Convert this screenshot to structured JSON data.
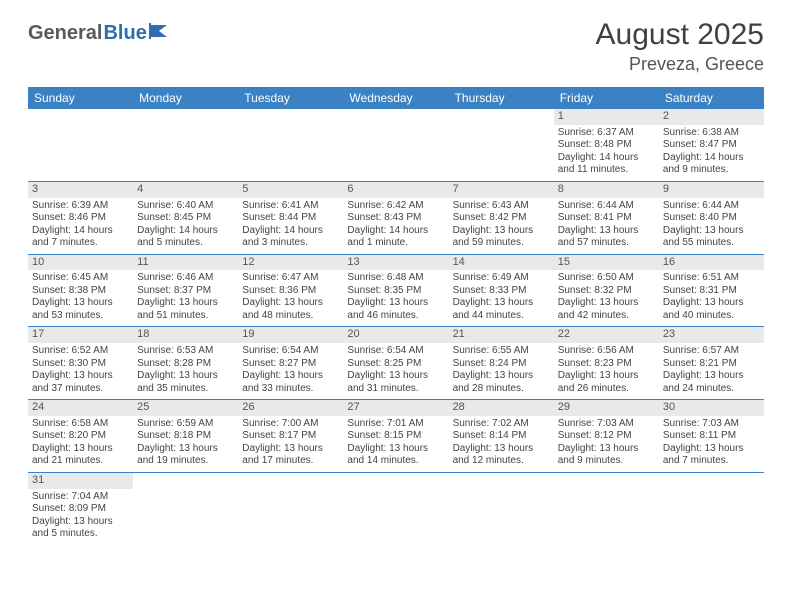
{
  "logo": {
    "part1": "General",
    "part2": "Blue"
  },
  "colors": {
    "header_bg": "#3a82c4",
    "header_text": "#ffffff",
    "daynum_bg": "#e9e9e9",
    "border": "#3a82c4",
    "logo_gray": "#5a5a5a",
    "logo_blue": "#2f6fb0",
    "text": "#444444",
    "title": "#404040"
  },
  "title": "August 2025",
  "location": "Preveza, Greece",
  "day_headers": [
    "Sunday",
    "Monday",
    "Tuesday",
    "Wednesday",
    "Thursday",
    "Friday",
    "Saturday"
  ],
  "weeks": [
    [
      null,
      null,
      null,
      null,
      null,
      {
        "n": "1",
        "sr": "Sunrise: 6:37 AM",
        "ss": "Sunset: 8:48 PM",
        "d1": "Daylight: 14 hours",
        "d2": "and 11 minutes."
      },
      {
        "n": "2",
        "sr": "Sunrise: 6:38 AM",
        "ss": "Sunset: 8:47 PM",
        "d1": "Daylight: 14 hours",
        "d2": "and 9 minutes."
      }
    ],
    [
      {
        "n": "3",
        "sr": "Sunrise: 6:39 AM",
        "ss": "Sunset: 8:46 PM",
        "d1": "Daylight: 14 hours",
        "d2": "and 7 minutes."
      },
      {
        "n": "4",
        "sr": "Sunrise: 6:40 AM",
        "ss": "Sunset: 8:45 PM",
        "d1": "Daylight: 14 hours",
        "d2": "and 5 minutes."
      },
      {
        "n": "5",
        "sr": "Sunrise: 6:41 AM",
        "ss": "Sunset: 8:44 PM",
        "d1": "Daylight: 14 hours",
        "d2": "and 3 minutes."
      },
      {
        "n": "6",
        "sr": "Sunrise: 6:42 AM",
        "ss": "Sunset: 8:43 PM",
        "d1": "Daylight: 14 hours",
        "d2": "and 1 minute."
      },
      {
        "n": "7",
        "sr": "Sunrise: 6:43 AM",
        "ss": "Sunset: 8:42 PM",
        "d1": "Daylight: 13 hours",
        "d2": "and 59 minutes."
      },
      {
        "n": "8",
        "sr": "Sunrise: 6:44 AM",
        "ss": "Sunset: 8:41 PM",
        "d1": "Daylight: 13 hours",
        "d2": "and 57 minutes."
      },
      {
        "n": "9",
        "sr": "Sunrise: 6:44 AM",
        "ss": "Sunset: 8:40 PM",
        "d1": "Daylight: 13 hours",
        "d2": "and 55 minutes."
      }
    ],
    [
      {
        "n": "10",
        "sr": "Sunrise: 6:45 AM",
        "ss": "Sunset: 8:38 PM",
        "d1": "Daylight: 13 hours",
        "d2": "and 53 minutes."
      },
      {
        "n": "11",
        "sr": "Sunrise: 6:46 AM",
        "ss": "Sunset: 8:37 PM",
        "d1": "Daylight: 13 hours",
        "d2": "and 51 minutes."
      },
      {
        "n": "12",
        "sr": "Sunrise: 6:47 AM",
        "ss": "Sunset: 8:36 PM",
        "d1": "Daylight: 13 hours",
        "d2": "and 48 minutes."
      },
      {
        "n": "13",
        "sr": "Sunrise: 6:48 AM",
        "ss": "Sunset: 8:35 PM",
        "d1": "Daylight: 13 hours",
        "d2": "and 46 minutes."
      },
      {
        "n": "14",
        "sr": "Sunrise: 6:49 AM",
        "ss": "Sunset: 8:33 PM",
        "d1": "Daylight: 13 hours",
        "d2": "and 44 minutes."
      },
      {
        "n": "15",
        "sr": "Sunrise: 6:50 AM",
        "ss": "Sunset: 8:32 PM",
        "d1": "Daylight: 13 hours",
        "d2": "and 42 minutes."
      },
      {
        "n": "16",
        "sr": "Sunrise: 6:51 AM",
        "ss": "Sunset: 8:31 PM",
        "d1": "Daylight: 13 hours",
        "d2": "and 40 minutes."
      }
    ],
    [
      {
        "n": "17",
        "sr": "Sunrise: 6:52 AM",
        "ss": "Sunset: 8:30 PM",
        "d1": "Daylight: 13 hours",
        "d2": "and 37 minutes."
      },
      {
        "n": "18",
        "sr": "Sunrise: 6:53 AM",
        "ss": "Sunset: 8:28 PM",
        "d1": "Daylight: 13 hours",
        "d2": "and 35 minutes."
      },
      {
        "n": "19",
        "sr": "Sunrise: 6:54 AM",
        "ss": "Sunset: 8:27 PM",
        "d1": "Daylight: 13 hours",
        "d2": "and 33 minutes."
      },
      {
        "n": "20",
        "sr": "Sunrise: 6:54 AM",
        "ss": "Sunset: 8:25 PM",
        "d1": "Daylight: 13 hours",
        "d2": "and 31 minutes."
      },
      {
        "n": "21",
        "sr": "Sunrise: 6:55 AM",
        "ss": "Sunset: 8:24 PM",
        "d1": "Daylight: 13 hours",
        "d2": "and 28 minutes."
      },
      {
        "n": "22",
        "sr": "Sunrise: 6:56 AM",
        "ss": "Sunset: 8:23 PM",
        "d1": "Daylight: 13 hours",
        "d2": "and 26 minutes."
      },
      {
        "n": "23",
        "sr": "Sunrise: 6:57 AM",
        "ss": "Sunset: 8:21 PM",
        "d1": "Daylight: 13 hours",
        "d2": "and 24 minutes."
      }
    ],
    [
      {
        "n": "24",
        "sr": "Sunrise: 6:58 AM",
        "ss": "Sunset: 8:20 PM",
        "d1": "Daylight: 13 hours",
        "d2": "and 21 minutes."
      },
      {
        "n": "25",
        "sr": "Sunrise: 6:59 AM",
        "ss": "Sunset: 8:18 PM",
        "d1": "Daylight: 13 hours",
        "d2": "and 19 minutes."
      },
      {
        "n": "26",
        "sr": "Sunrise: 7:00 AM",
        "ss": "Sunset: 8:17 PM",
        "d1": "Daylight: 13 hours",
        "d2": "and 17 minutes."
      },
      {
        "n": "27",
        "sr": "Sunrise: 7:01 AM",
        "ss": "Sunset: 8:15 PM",
        "d1": "Daylight: 13 hours",
        "d2": "and 14 minutes."
      },
      {
        "n": "28",
        "sr": "Sunrise: 7:02 AM",
        "ss": "Sunset: 8:14 PM",
        "d1": "Daylight: 13 hours",
        "d2": "and 12 minutes."
      },
      {
        "n": "29",
        "sr": "Sunrise: 7:03 AM",
        "ss": "Sunset: 8:12 PM",
        "d1": "Daylight: 13 hours",
        "d2": "and 9 minutes."
      },
      {
        "n": "30",
        "sr": "Sunrise: 7:03 AM",
        "ss": "Sunset: 8:11 PM",
        "d1": "Daylight: 13 hours",
        "d2": "and 7 minutes."
      }
    ],
    [
      {
        "n": "31",
        "sr": "Sunrise: 7:04 AM",
        "ss": "Sunset: 8:09 PM",
        "d1": "Daylight: 13 hours",
        "d2": "and 5 minutes."
      },
      null,
      null,
      null,
      null,
      null,
      null
    ]
  ]
}
